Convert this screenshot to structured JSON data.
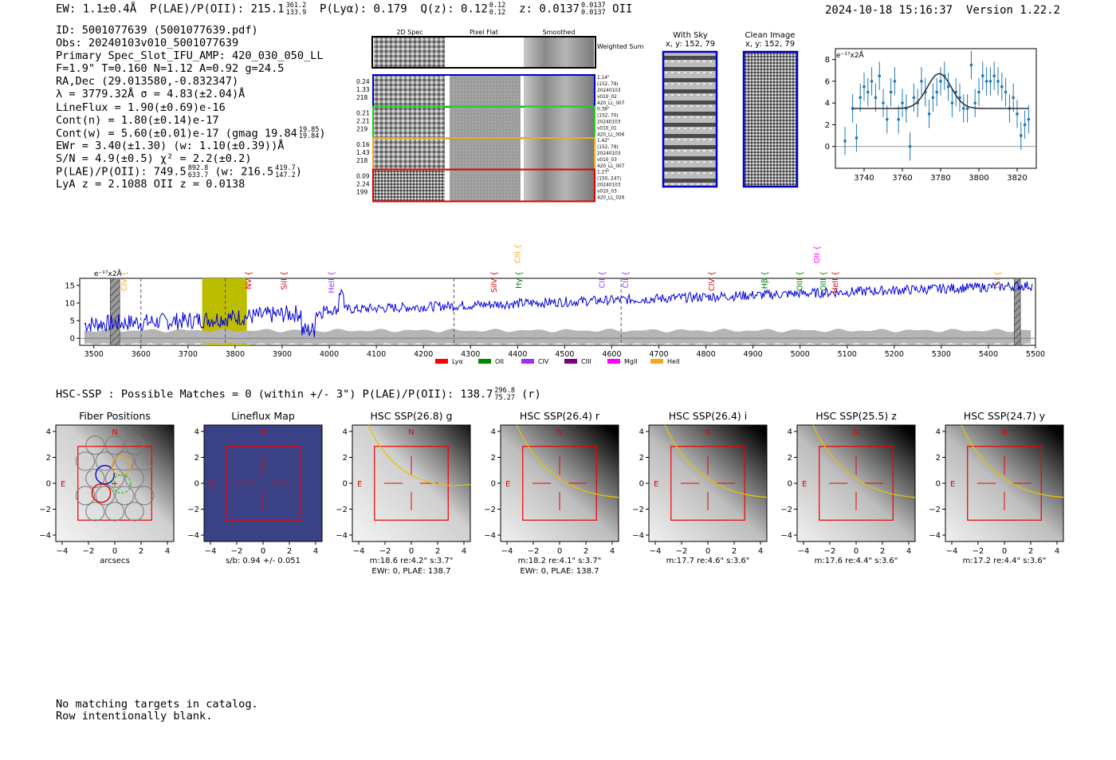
{
  "header": {
    "ew": "EW: 1.1±0.4Å",
    "plae_label": "P(LAE)/P(OII): 215.1",
    "plae_hi": "361.2",
    "plae_lo": "133.9",
    "plya": "P(Lyα): 0.179",
    "qz_label": "Q(z): 0.12",
    "qz_hi": "0.12",
    "qz_lo": "0.12",
    "z_label": "z: 0.0137",
    "z_hi": "0.0137",
    "z_lo": "0.0137",
    "z_line": "OII",
    "timestamp": "2024-10-18 15:16:37",
    "version": "Version 1.22.2"
  },
  "info": {
    "id": "ID: 5001077639 (5001077639.pdf)",
    "obs": "Obs: 20240103v010_5001077639",
    "primary": "Primary Spec_Slot_IFU_AMP: 420_030_050_LL",
    "params": "F=1.9\"  T=0.160  N=1.12  A=0.92  g=24.5",
    "radec": "RA,Dec (29.013580,-0.832347)",
    "lambda": "λ = 3779.32Å   σ = 4.83(±2.04)Å",
    "lineflux": "LineFlux = 1.90(±0.69)e-16",
    "contn": "Cont(n) = 1.80(±0.14)e-17",
    "contw": "Cont(w) = 5.60(±0.01)e-17 (gmag 19.84",
    "contw_hi": "19.85",
    "contw_lo": "19.84",
    "ewr": "EWr = 3.40(±1.30) (w: 1.10(±0.39))Å",
    "sn": "S/N = 4.9(±0.5)  χ² = 2.2(±0.2)",
    "plae2": "P(LAE)/P(OII): 749.5",
    "plae2_hi": "892.8",
    "plae2_lo": "633.7",
    "plae2_w": "(w: 216.5",
    "plae2_w_hi": "419.7",
    "plae2_w_lo": "147.2",
    "lyaz": "LyA z = 2.1088  OII z = 0.0138"
  },
  "cutouts": {
    "col_2d": "2D Spec",
    "col_flat": "Pixel Flat",
    "col_smooth": "Smoothed",
    "weighted": "Weighted Sum",
    "rows": [
      {
        "w": "0.24",
        "s": "1.33",
        "n": "218",
        "dist": "1.14\"",
        "xy": "(152, 79)",
        "obs": "20240103",
        "shot": "v010_02",
        "amp": "420_LL_007",
        "color": "#0000cc"
      },
      {
        "w": "0.21",
        "s": "2.21",
        "n": "219",
        "dist": "0.36\"",
        "xy": "(152, 70)",
        "obs": "20240103",
        "shot": "v010_01",
        "amp": "420_LL_006",
        "color": "#22cc22"
      },
      {
        "w": "0.16",
        "s": "1.43",
        "n": "218",
        "dist": "1.42\"",
        "xy": "(152, 79)",
        "obs": "20240103",
        "shot": "v010_03",
        "amp": "420_LL_007",
        "color": "#f5a623"
      },
      {
        "w": "0.09",
        "s": "2.24",
        "n": "199",
        "dist": "1.27\"",
        "xy": "(150, 247)",
        "obs": "20240103",
        "shot": "v010_03",
        "amp": "420_LL_026",
        "color": "#dd0000"
      }
    ]
  },
  "sky": {
    "with_sky": "With Sky",
    "with_sky_xy": "x, y: 152, 79",
    "clean": "Clean Image",
    "clean_xy": "x, y: 152, 79"
  },
  "chart_data": [
    {
      "type": "scatter",
      "title": "",
      "units_label": "e⁻¹⁷x2Å",
      "x": [
        3730,
        3734,
        3736,
        3738,
        3740,
        3742,
        3744,
        3746,
        3748,
        3750,
        3752,
        3754,
        3756,
        3758,
        3760,
        3762,
        3764,
        3766,
        3768,
        3770,
        3772,
        3774,
        3776,
        3778,
        3780,
        3782,
        3784,
        3786,
        3788,
        3790,
        3792,
        3794,
        3796,
        3798,
        3800,
        3802,
        3804,
        3806,
        3808,
        3810,
        3812,
        3814,
        3816,
        3818,
        3820,
        3822,
        3824,
        3826
      ],
      "y": [
        0.5,
        3.5,
        0.8,
        4.5,
        5.5,
        5.0,
        6.0,
        4.5,
        6.5,
        4.0,
        2.5,
        5.0,
        6.0,
        2.5,
        4.0,
        3.5,
        0.0,
        4.5,
        4.0,
        6.0,
        5.0,
        3.0,
        4.5,
        5.0,
        6.0,
        6.5,
        5.5,
        4.0,
        5.0,
        4.5,
        3.5,
        3.5,
        7.5,
        4.0,
        5.0,
        6.5,
        6.0,
        6.0,
        6.5,
        6.0,
        5.5,
        5.0,
        3.5,
        4.5,
        3.0,
        1.0,
        2.0,
        2.5
      ],
      "model_peak": 6.7,
      "model_base": 3.5,
      "model_center": 3779.3,
      "model_sigma": 4.83,
      "xticks": [
        "3740",
        "3760",
        "3780",
        "3800",
        "3820"
      ],
      "yticks": [
        "0",
        "2",
        "4",
        "6",
        "8"
      ],
      "xlim": [
        3725,
        3830
      ],
      "ylim": [
        -2,
        9
      ]
    },
    {
      "type": "line",
      "title": "",
      "units_label": "e⁻¹⁷x2Å",
      "xlim": [
        3470,
        5500
      ],
      "ylim": [
        -2,
        17
      ],
      "xticks": [
        "3500",
        "3600",
        "3700",
        "3800",
        "3900",
        "4000",
        "4100",
        "4200",
        "4300",
        "4400",
        "4500",
        "4600",
        "4700",
        "4800",
        "4900",
        "5000",
        "5100",
        "5200",
        "5300",
        "5400",
        "5500"
      ],
      "yticks": [
        "0",
        "5",
        "10",
        "15"
      ],
      "highlight_range": [
        3730,
        3825
      ],
      "dashed_lines": [
        3600,
        3779,
        4265,
        4620
      ],
      "hatched_ranges": [
        [
          3535,
          3555
        ],
        [
          5455,
          5468
        ]
      ],
      "line_markers": [
        {
          "name": "CIV",
          "wave": 3565,
          "color": "#f5a623"
        },
        {
          "name": "NV",
          "wave": 3829,
          "color": "#dd0000"
        },
        {
          "name": "SiII",
          "wave": 3904,
          "color": "#dd0000"
        },
        {
          "name": "HeII",
          "wave": 4005,
          "color": "#9b30ff"
        },
        {
          "name": "SiIV",
          "wave": 4350,
          "color": "#dd0000"
        },
        {
          "name": "CIII",
          "wave": 4400,
          "color": "#f5a623"
        },
        {
          "name": "Hγ",
          "wave": 4403,
          "color": "#008800"
        },
        {
          "name": "CII",
          "wave": 4580,
          "color": "#9b30ff"
        },
        {
          "name": "CII",
          "wave": 4630,
          "color": "#9b30ff"
        },
        {
          "name": "CIV",
          "wave": 4813,
          "color": "#dd0000"
        },
        {
          "name": "Hβ",
          "wave": 4925,
          "color": "#008800"
        },
        {
          "name": "OIII",
          "wave": 5000,
          "color": "#008800"
        },
        {
          "name": "OII",
          "wave": 5036,
          "color": "#ff00ff"
        },
        {
          "name": "OIII",
          "wave": 5050,
          "color": "#008800"
        },
        {
          "name": "HeII",
          "wave": 5075,
          "color": "#dd0000"
        },
        {
          "name": "CII",
          "wave": 5420,
          "color": "#f5a623"
        }
      ],
      "legend": [
        {
          "label": "Lyα",
          "color": "#ff0000"
        },
        {
          "label": "OII",
          "color": "#008800"
        },
        {
          "label": "CIV",
          "color": "#9b30ff"
        },
        {
          "label": "CIII",
          "color": "#7b0080"
        },
        {
          "label": "MgII",
          "color": "#ff00ff"
        },
        {
          "label": "HeII",
          "color": "#f5a623"
        }
      ]
    }
  ],
  "hsc": {
    "header": "HSC-SSP : Possible Matches = 0 (within +/- 3\")  P(LAE)/P(OII): 138.7",
    "header_hi": "296.8",
    "header_lo": "75.27",
    "header_tail": "(r)",
    "axis_ticks_x": [
      "−4",
      "−2",
      "0",
      "2",
      "4"
    ],
    "axis_ticks_y": [
      "4",
      "2",
      "0",
      "−2",
      "−4"
    ],
    "north": "N",
    "east": "E",
    "panels": [
      {
        "title": "Fiber Positions",
        "caption1": "arcsecs",
        "caption2": ""
      },
      {
        "title": "Lineflux Map",
        "caption1": "s/b: 0.94 +/- 0.051",
        "caption2": ""
      },
      {
        "title": "HSC SSP(26.8) g",
        "caption1": "m:18.6  re:4.2\"  s:3.7\"",
        "caption2": "EWr: 0, PLAE: 138.7"
      },
      {
        "title": "HSC SSP(26.4) r",
        "caption1": "m:18.2  re:4.1\"  s:3.7\"",
        "caption2": "EWr: 0, PLAE: 138.7"
      },
      {
        "title": "HSC SSP(26.4) i",
        "caption1": "m:17.7  re:4.6\"  s:3.6\"",
        "caption2": ""
      },
      {
        "title": "HSC SSP(25.5) z",
        "caption1": "m:17.6  re:4.4\"  s:3.6\"",
        "caption2": ""
      },
      {
        "title": "HSC SSP(24.7) y",
        "caption1": "m:17.2  re:4.4\"  s:3.6\"",
        "caption2": ""
      }
    ]
  },
  "catalog": {
    "line1": "No matching targets in catalog.",
    "line2": "Row intentionally blank."
  }
}
